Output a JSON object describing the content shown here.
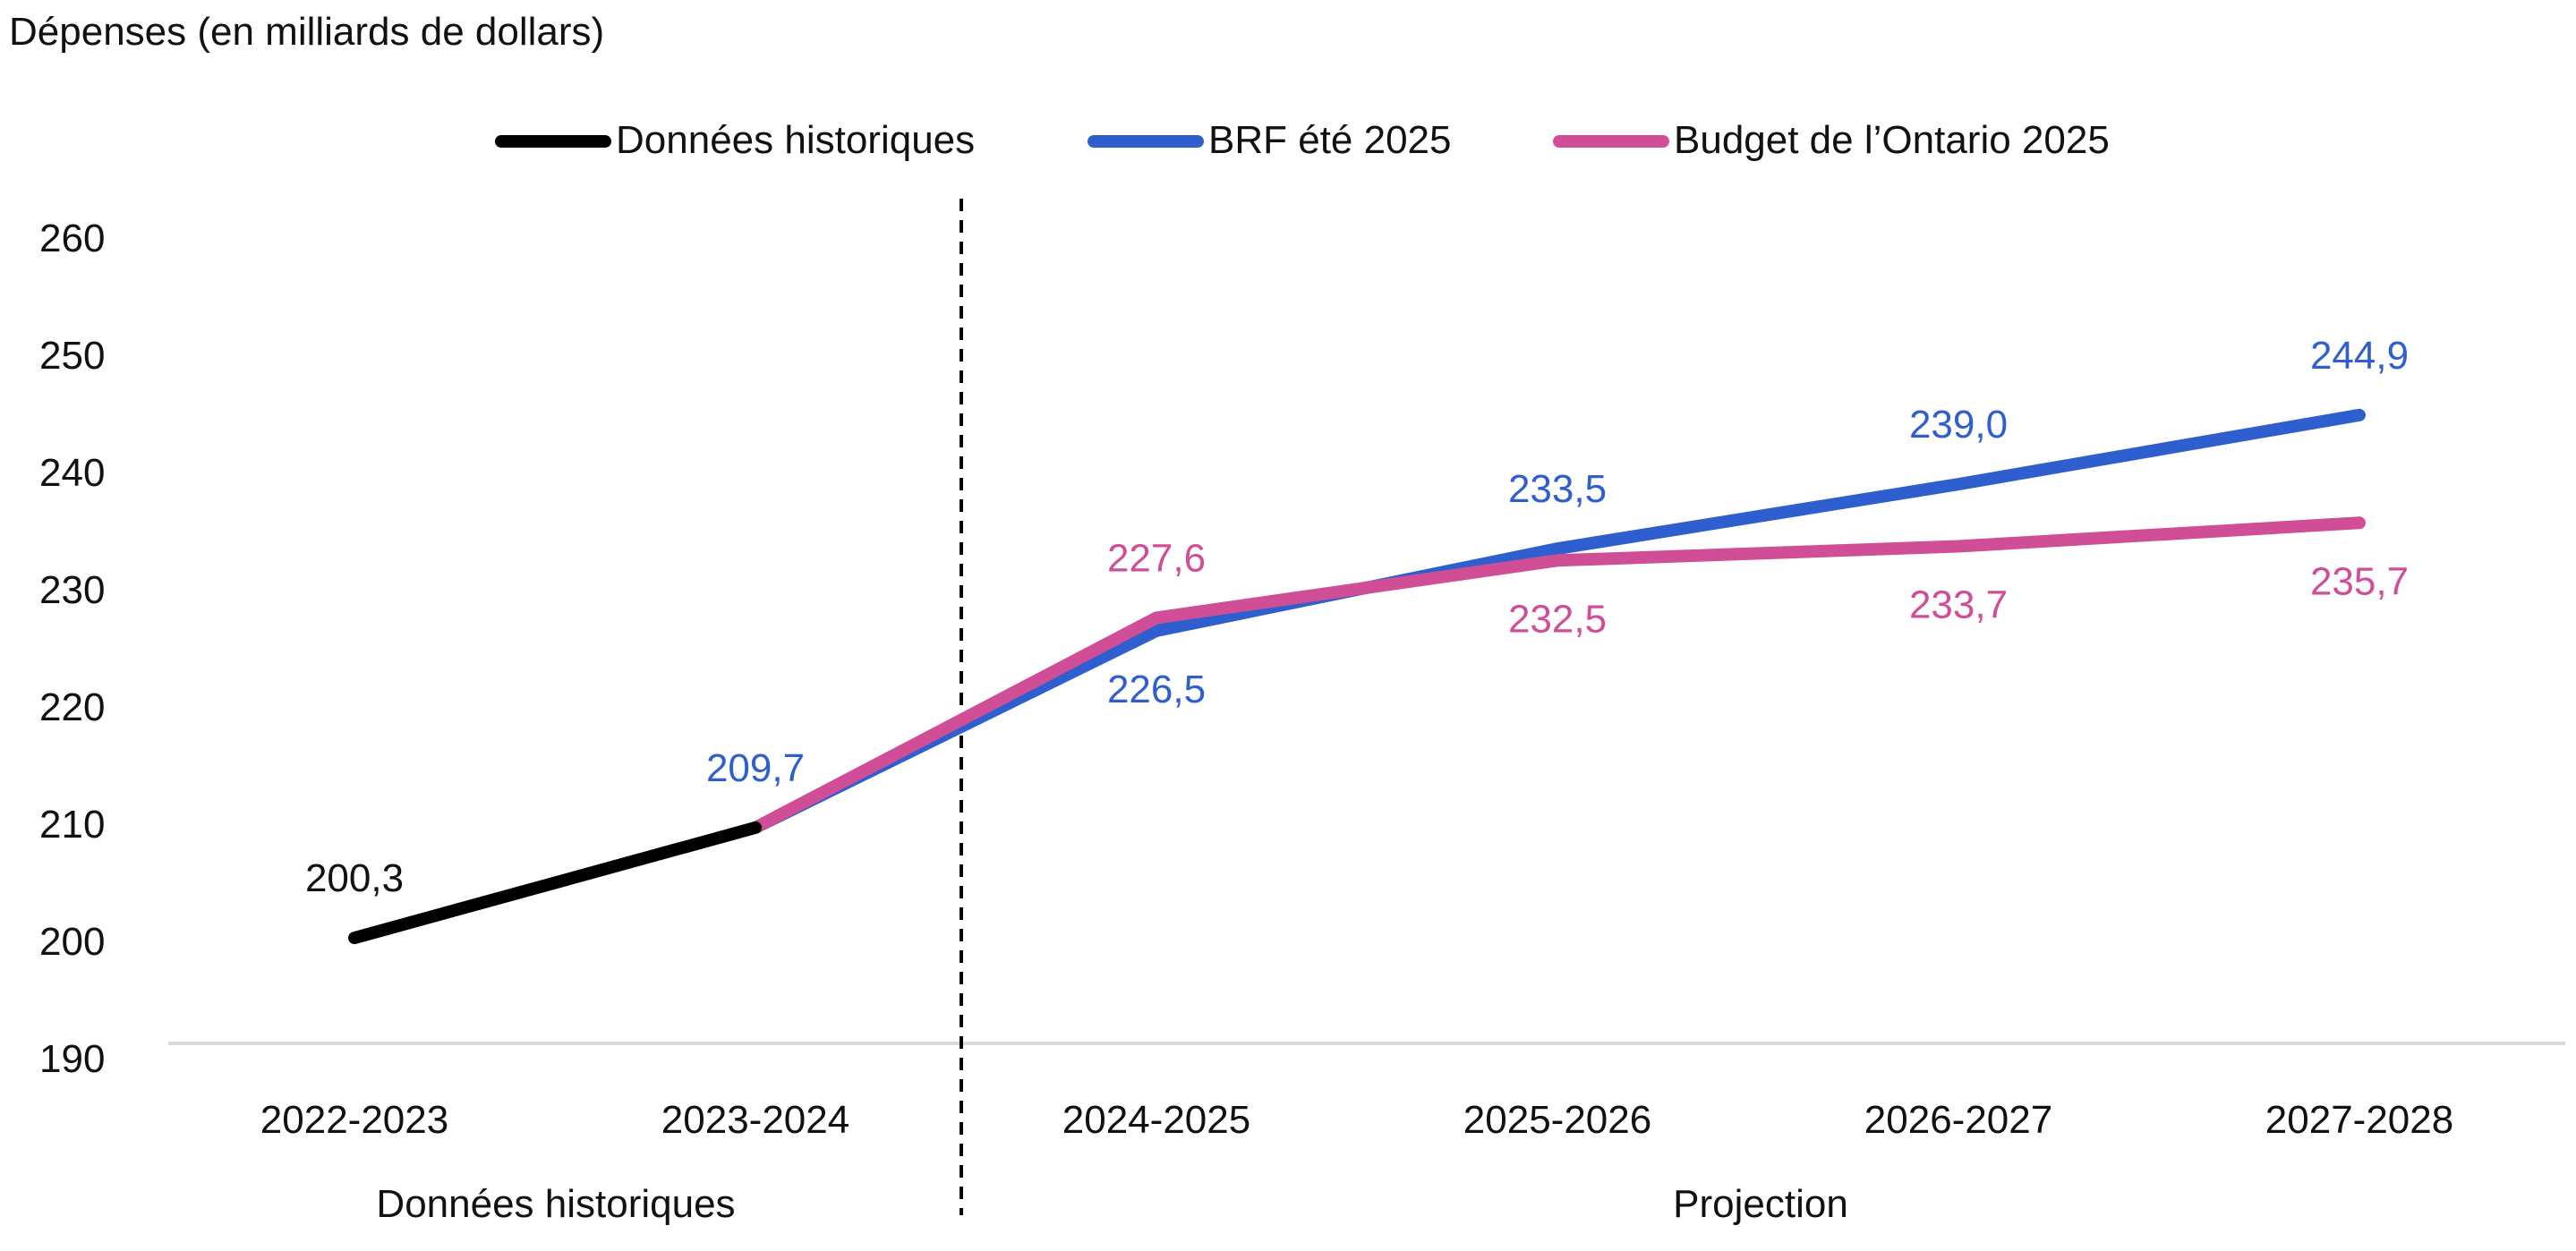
{
  "chart_data": {
    "type": "line",
    "title": "Dépenses (en milliards de dollars)",
    "categories": [
      "2022-2023",
      "2023-2024",
      "2024-2025",
      "2025-2026",
      "2026-2027",
      "2027-2028"
    ],
    "period_labels": {
      "historical": "Données historiques",
      "projection": "Projection"
    },
    "ylim": [
      190,
      260
    ],
    "yticks": [
      "260",
      "250",
      "240",
      "230",
      "220",
      "210",
      "200",
      "190"
    ],
    "series": [
      {
        "name": "Données historiques",
        "color": "#000000",
        "values": [
          200.3,
          209.7,
          null,
          null,
          null,
          null
        ],
        "labels": [
          "200,3",
          "",
          "",
          "",
          "",
          ""
        ]
      },
      {
        "name": "BRF été 2025",
        "color": "#2f5fce",
        "values": [
          null,
          209.7,
          226.5,
          233.5,
          239.0,
          244.9
        ],
        "labels": [
          "",
          "209,7",
          "226,5",
          "233,5",
          "239,0",
          "244,9"
        ]
      },
      {
        "name": "Budget de l’Ontario 2025",
        "color": "#d04e96",
        "values": [
          null,
          209.7,
          227.6,
          232.5,
          233.7,
          235.7
        ],
        "labels": [
          "",
          "",
          "227,6",
          "232,5",
          "233,7",
          "235,7"
        ]
      }
    ],
    "legend_position": "top-center",
    "grid": false,
    "divider": "dashed vertical line between 2023-2024 and 2024-2025"
  }
}
